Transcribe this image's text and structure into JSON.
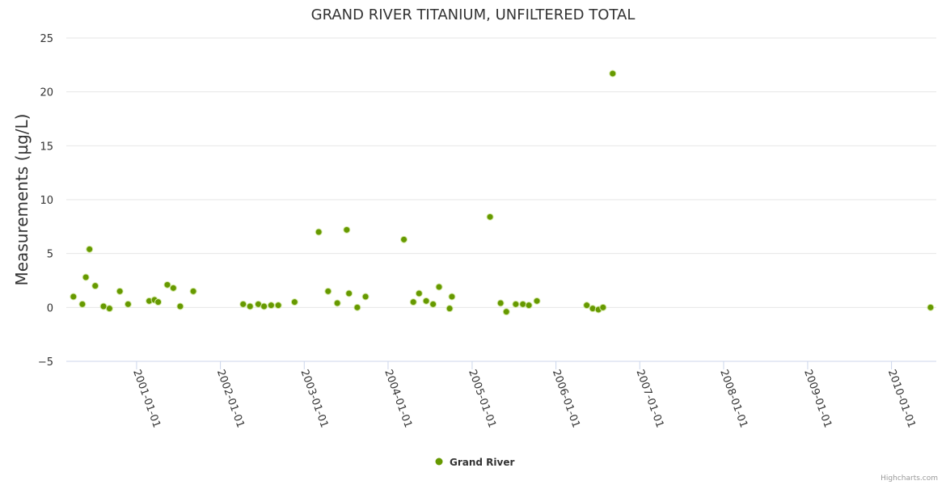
{
  "chart_data": {
    "type": "scatter",
    "title": "GRAND RIVER TITANIUM, UNFILTERED TOTAL",
    "xlabel": "",
    "ylabel": "Measurements (µg/L)",
    "ylim": [
      -5,
      25
    ],
    "yticks": [
      -5,
      0,
      5,
      10,
      15,
      20,
      25
    ],
    "xlim": [
      "2000-03-01",
      "2010-07-15"
    ],
    "xticks": [
      "2001-01-01",
      "2002-01-01",
      "2003-01-01",
      "2004-01-01",
      "2005-01-01",
      "2006-01-01",
      "2007-01-01",
      "2008-01-01",
      "2009-01-01",
      "2010-01-01"
    ],
    "grid": true,
    "legend_position": "bottom-center",
    "series": [
      {
        "name": "Grand River",
        "color": "#669900",
        "points": [
          {
            "x": "2000-04-01",
            "y": 1.0
          },
          {
            "x": "2000-05-10",
            "y": 0.3
          },
          {
            "x": "2000-05-25",
            "y": 2.8
          },
          {
            "x": "2000-06-10",
            "y": 5.4
          },
          {
            "x": "2000-07-05",
            "y": 2.0
          },
          {
            "x": "2000-08-10",
            "y": 0.1
          },
          {
            "x": "2000-09-05",
            "y": -0.1
          },
          {
            "x": "2000-10-20",
            "y": 1.5
          },
          {
            "x": "2000-11-25",
            "y": 0.3
          },
          {
            "x": "2001-02-25",
            "y": 0.6
          },
          {
            "x": "2001-03-20",
            "y": 0.7
          },
          {
            "x": "2001-04-05",
            "y": 0.5
          },
          {
            "x": "2001-05-15",
            "y": 2.1
          },
          {
            "x": "2001-06-10",
            "y": 1.8
          },
          {
            "x": "2001-07-10",
            "y": 0.1
          },
          {
            "x": "2001-09-05",
            "y": 1.5
          },
          {
            "x": "2002-04-10",
            "y": 0.3
          },
          {
            "x": "2002-05-10",
            "y": 0.1
          },
          {
            "x": "2002-06-15",
            "y": 0.3
          },
          {
            "x": "2002-07-10",
            "y": 0.1
          },
          {
            "x": "2002-08-10",
            "y": 0.2
          },
          {
            "x": "2002-09-10",
            "y": 0.2
          },
          {
            "x": "2002-11-20",
            "y": 0.5
          },
          {
            "x": "2003-03-05",
            "y": 7.0
          },
          {
            "x": "2003-04-15",
            "y": 1.5
          },
          {
            "x": "2003-05-25",
            "y": 0.4
          },
          {
            "x": "2003-07-05",
            "y": 7.2
          },
          {
            "x": "2003-07-15",
            "y": 1.3
          },
          {
            "x": "2003-08-20",
            "y": 0.0
          },
          {
            "x": "2003-09-25",
            "y": 1.0
          },
          {
            "x": "2004-03-10",
            "y": 6.3
          },
          {
            "x": "2004-04-20",
            "y": 0.5
          },
          {
            "x": "2004-05-15",
            "y": 1.3
          },
          {
            "x": "2004-06-15",
            "y": 0.6
          },
          {
            "x": "2004-07-15",
            "y": 0.3
          },
          {
            "x": "2004-08-10",
            "y": 1.9
          },
          {
            "x": "2004-09-25",
            "y": -0.1
          },
          {
            "x": "2004-10-05",
            "y": 1.0
          },
          {
            "x": "2005-03-20",
            "y": 8.4
          },
          {
            "x": "2005-05-05",
            "y": 0.4
          },
          {
            "x": "2005-05-30",
            "y": -0.4
          },
          {
            "x": "2005-07-10",
            "y": 0.3
          },
          {
            "x": "2005-08-10",
            "y": 0.3
          },
          {
            "x": "2005-09-05",
            "y": 0.2
          },
          {
            "x": "2005-10-10",
            "y": 0.6
          },
          {
            "x": "2006-05-15",
            "y": 0.2
          },
          {
            "x": "2006-06-10",
            "y": -0.1
          },
          {
            "x": "2006-07-05",
            "y": -0.2
          },
          {
            "x": "2006-07-25",
            "y": 0.0
          },
          {
            "x": "2006-09-05",
            "y": 21.7
          },
          {
            "x": "2010-06-20",
            "y": 0.0
          }
        ]
      }
    ],
    "credits": "Highcharts.com"
  }
}
